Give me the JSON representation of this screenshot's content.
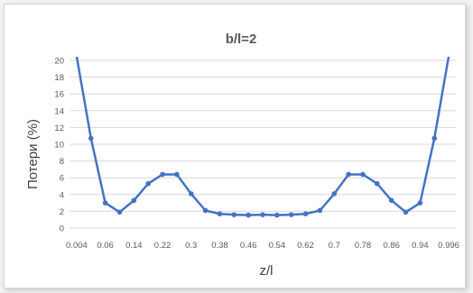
{
  "chart_data": {
    "type": "line",
    "title": "b/l=2",
    "xlabel": "z/l",
    "ylabel": "Потери (%)",
    "ylim": [
      0,
      20
    ],
    "y_ticks": [
      "0",
      "2",
      "4",
      "6",
      "8",
      "10",
      "12",
      "14",
      "16",
      "18",
      "20"
    ],
    "grid": true,
    "legend": "none",
    "x": [
      0.004,
      0.02,
      0.06,
      0.1,
      0.14,
      0.18,
      0.22,
      0.26,
      0.3,
      0.34,
      0.38,
      0.42,
      0.46,
      0.5,
      0.54,
      0.58,
      0.62,
      0.66,
      0.7,
      0.74,
      0.78,
      0.82,
      0.86,
      0.9,
      0.94,
      0.98,
      0.996
    ],
    "x_tick_labels": [
      "0.004",
      "0.06",
      "0.14",
      "0.22",
      "0.3",
      "0.38",
      "0.46",
      "0.54",
      "0.62",
      "0.7",
      "0.78",
      "0.86",
      "0.94",
      "0.996"
    ],
    "series": [
      {
        "values": [
          20.5,
          10.7,
          3.0,
          1.9,
          3.3,
          5.3,
          6.4,
          6.4,
          4.1,
          2.1,
          1.7,
          1.6,
          1.55,
          1.6,
          1.55,
          1.6,
          1.7,
          2.1,
          4.1,
          6.4,
          6.4,
          5.3,
          3.3,
          1.9,
          3.0,
          10.7,
          20.5
        ],
        "color": "#4472c4"
      }
    ]
  }
}
